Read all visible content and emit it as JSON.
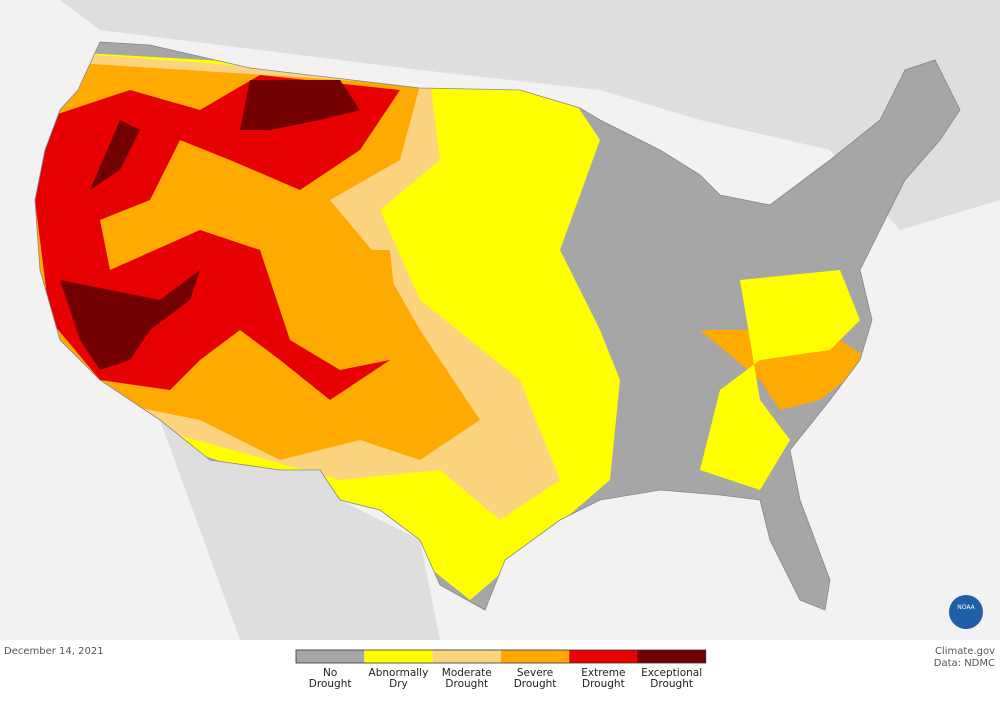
{
  "map": {
    "date": "December 14, 2021",
    "credit": [
      "Climate.gov",
      "Data: NDMC"
    ],
    "logo": "NOAA",
    "legend": [
      {
        "lines": [
          "No",
          "Drought"
        ],
        "color": "#a6a6a6"
      },
      {
        "lines": [
          "Abnormally",
          "Dry"
        ],
        "color": "#ffff00"
      },
      {
        "lines": [
          "Moderate",
          "Drought"
        ],
        "color": "#fcd37f"
      },
      {
        "lines": [
          "Severe",
          "Drought"
        ],
        "color": "#ffaa00"
      },
      {
        "lines": [
          "Extreme",
          "Drought"
        ],
        "color": "#e60000"
      },
      {
        "lines": [
          "Exceptional",
          "Drought"
        ],
        "color": "#730000"
      }
    ]
  }
}
